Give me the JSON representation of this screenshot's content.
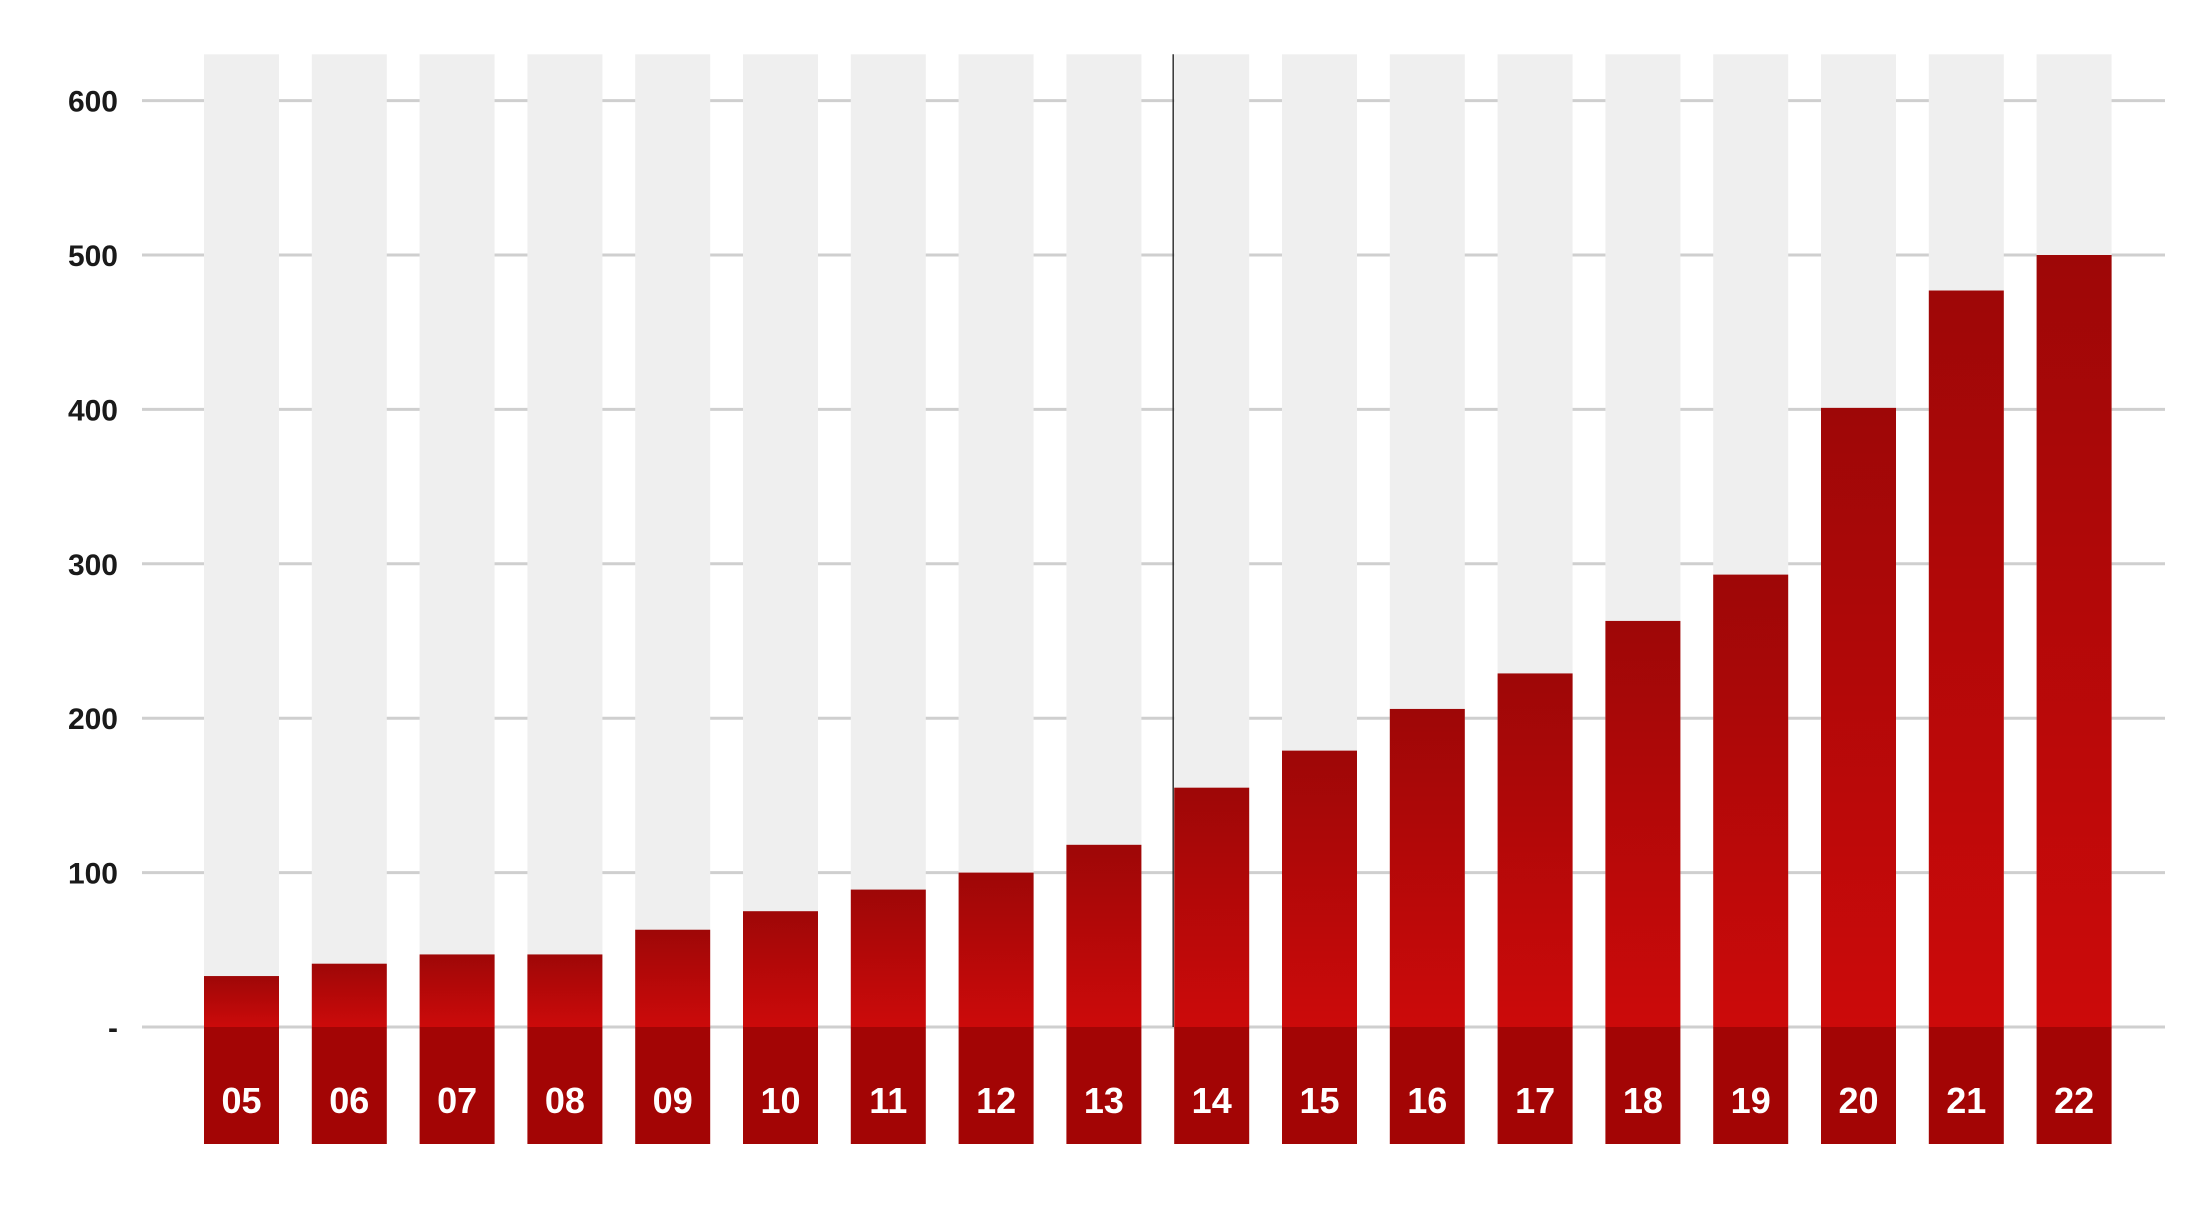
{
  "chart_data": {
    "type": "bar",
    "title": "",
    "xlabel": "",
    "ylabel": "",
    "categories": [
      "05",
      "06",
      "07",
      "08",
      "09",
      "10",
      "11",
      "12",
      "13",
      "14",
      "15",
      "16",
      "17",
      "18",
      "19",
      "20",
      "21",
      "22"
    ],
    "values": [
      33,
      41,
      47,
      47,
      63,
      75,
      89,
      100,
      118,
      155,
      179,
      206,
      229,
      263,
      293,
      401,
      477,
      500
    ],
    "ylim": [
      0,
      600
    ],
    "yticks": [
      0,
      100,
      200,
      300,
      400,
      500,
      600
    ],
    "ytick_labels": [
      "-",
      "100",
      "200",
      "300",
      "400",
      "500",
      "600"
    ],
    "grid": true,
    "background_bar_max": 630,
    "colors": {
      "bar_top": "#9e0707",
      "bar_bottom": "#cc0a0a",
      "background_bar": "#efefef",
      "label_band": "#a30505",
      "gridline": "#cfcfcf",
      "marker_line": "#333333"
    }
  }
}
